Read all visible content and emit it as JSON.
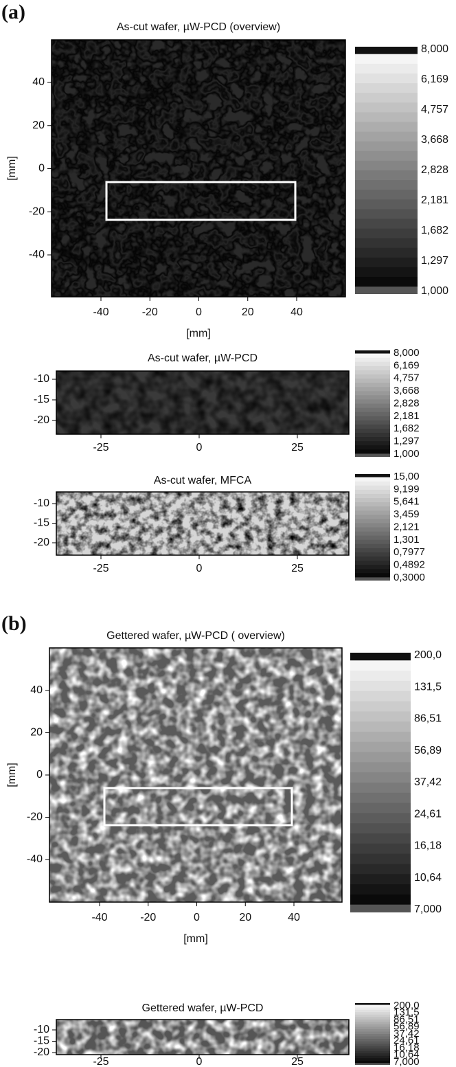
{
  "panels": [
    {
      "label": "(a)",
      "maps": [
        {
          "title": "As-cut wafer, µW-PCD (overview)",
          "xticks": [
            -40,
            -20,
            0,
            20,
            40
          ],
          "yticks": [
            40,
            20,
            0,
            -20,
            -40
          ],
          "xlabel": "[mm]",
          "ylabel": "[mm]",
          "colorbar": [
            "8,000",
            "6,169",
            "4,757",
            "3,668",
            "2,828",
            "2,181",
            "1,682",
            "1,297",
            "1,000"
          ]
        },
        {
          "title": "As-cut wafer, µW-PCD",
          "xticks": [
            -25,
            0,
            25
          ],
          "yticks": [
            -10,
            -15,
            -20
          ],
          "colorbar": [
            "8,000",
            "6,169",
            "4,757",
            "3,668",
            "2,828",
            "2,181",
            "1,682",
            "1,297",
            "1,000"
          ]
        },
        {
          "title": "As-cut wafer, MFCA",
          "xticks": [
            -25,
            0,
            25
          ],
          "yticks": [
            -10,
            -15,
            -20
          ],
          "colorbar": [
            "15,00",
            "9,199",
            "5,641",
            "3,459",
            "2,121",
            "1,301",
            "0,7977",
            "0,4892",
            "0,3000"
          ]
        }
      ]
    },
    {
      "label": "(b)",
      "maps": [
        {
          "title": "Gettered wafer, µW-PCD  ( overview)",
          "xticks": [
            -40,
            -20,
            0,
            20,
            40
          ],
          "yticks": [
            40,
            20,
            0,
            -20,
            -40
          ],
          "xlabel": "[mm]",
          "ylabel": "[mm]",
          "colorbar": [
            "200,0",
            "131,5",
            "86,51",
            "56,89",
            "37,42",
            "24,61",
            "16,18",
            "10,64",
            "7,000"
          ]
        },
        {
          "title": "Gettered wafer, µW-PCD",
          "xticks": [
            -25,
            0,
            25
          ],
          "yticks": [
            -10,
            -15,
            -20
          ],
          "colorbar": [
            "200,0",
            "131,5",
            "86,51",
            "56,89",
            "37,42",
            "24,61",
            "16,18",
            "10,64",
            "7,000"
          ]
        }
      ]
    }
  ]
}
